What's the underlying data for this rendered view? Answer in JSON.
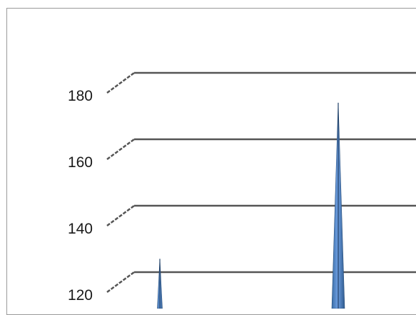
{
  "chart_data": {
    "type": "bar",
    "style": "3d-column",
    "title": "",
    "xlabel": "",
    "ylabel": "",
    "ylim": [
      110,
      190
    ],
    "y_ticks": [
      120,
      140,
      160,
      180
    ],
    "grid": true,
    "legend": "none",
    "bar_color": "#4f81bd",
    "series": [
      {
        "values": [
          124,
          171
        ]
      }
    ]
  }
}
